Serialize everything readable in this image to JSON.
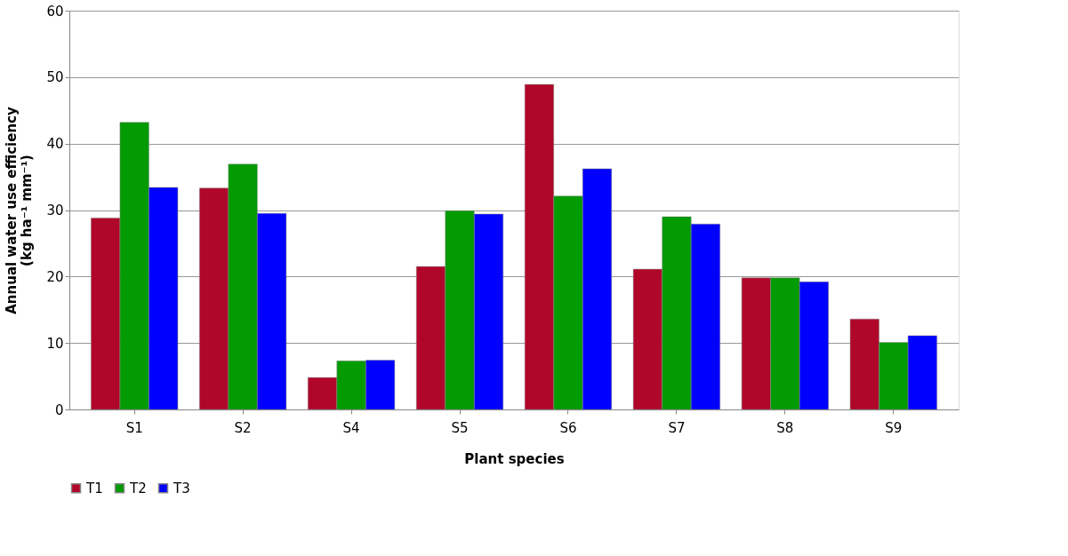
{
  "chart_data": {
    "type": "bar",
    "xlabel": "Plant species",
    "ylabel": [
      "Annual water use efficiency",
      "(kg ha⁻¹ mm⁻¹)"
    ],
    "categories": [
      "S1",
      "S2",
      "S4",
      "S5",
      "S6",
      "S7",
      "S8",
      "S9"
    ],
    "series": [
      {
        "name": "T1",
        "color": "#b0062a",
        "values": [
          28.8,
          33.3,
          4.8,
          21.5,
          48.9,
          21.1,
          19.8,
          13.6
        ]
      },
      {
        "name": "T2",
        "color": "#029b02",
        "values": [
          43.2,
          36.9,
          7.3,
          29.9,
          32.1,
          29.0,
          19.8,
          10.1
        ]
      },
      {
        "name": "T3",
        "color": "#0000ff",
        "values": [
          33.4,
          29.5,
          7.4,
          29.4,
          36.2,
          27.9,
          19.2,
          11.1
        ]
      }
    ],
    "ylim": [
      0,
      60
    ],
    "yticks": [
      0,
      10,
      20,
      30,
      40,
      50,
      60
    ],
    "grid": "y",
    "legend": "bottom"
  }
}
